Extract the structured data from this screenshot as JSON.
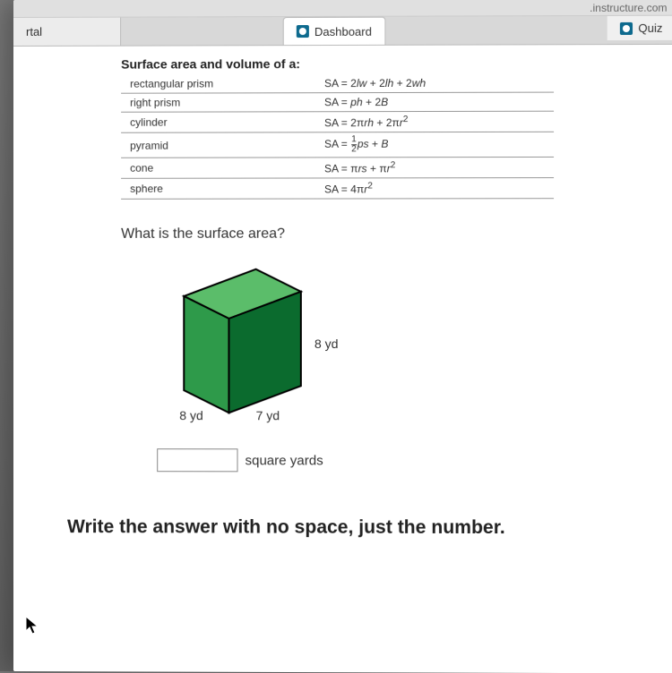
{
  "url_fragment": ".instructure.com",
  "tabs": {
    "left": "rtal",
    "center": "Dashboard",
    "right": "Quiz"
  },
  "formula_section": {
    "title": "Surface area and volume of a:",
    "rows": [
      {
        "shape": "rectangular prism",
        "formula_html": "SA = 2<i>lw</i> + 2<i>lh</i> + 2<i>wh</i>"
      },
      {
        "shape": "right prism",
        "formula_html": "SA = <i>ph</i> + 2<i>B</i>"
      },
      {
        "shape": "cylinder",
        "formula_html": "SA = 2π<i>rh</i> + 2π<i>r</i><sup>2</sup>"
      },
      {
        "shape": "pyramid",
        "formula_html": "SA = <span class='frac'><span class='n'>1</span><span>2</span></span><i>ps</i> + <i>B</i>"
      },
      {
        "shape": "cone",
        "formula_html": "SA = π<i>rs</i> + π<i>r</i><sup>2</sup>"
      },
      {
        "shape": "sphere",
        "formula_html": "SA = 4π<i>r</i><sup>2</sup>"
      }
    ]
  },
  "question": "What is the surface area?",
  "cube": {
    "top_fill": "#5bbd6a",
    "front_fill": "#2e9a4a",
    "side_fill": "#0b6b2e",
    "stroke": "#000000",
    "dims": {
      "height": "8 yd",
      "width_front": "8 yd",
      "depth": "7 yd"
    }
  },
  "answer": {
    "value": "",
    "unit": "square yards"
  },
  "instruction": "Write the answer with no space, just the number."
}
